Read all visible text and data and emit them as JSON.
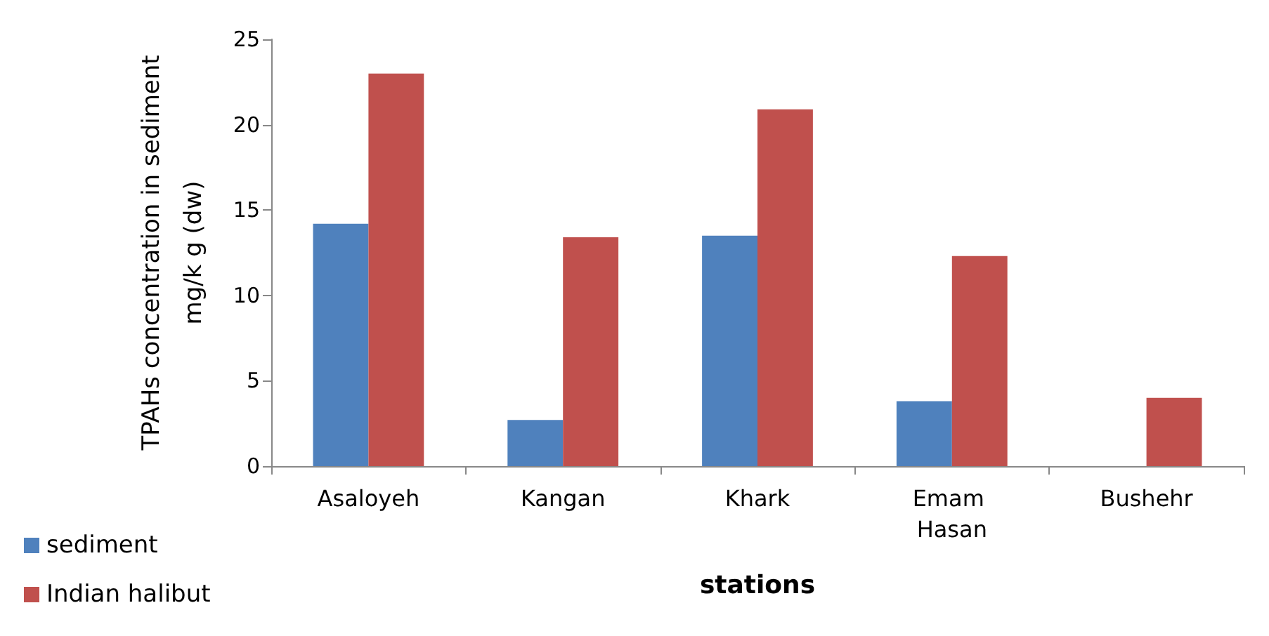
{
  "chart_data": {
    "type": "bar",
    "xlabel": "stations",
    "ylabel": "TPAHs concentration in sediment\nmg/k g (dw)",
    "categories": [
      "Asaloyeh",
      "Kangan",
      "Khark",
      "Emam Hasan",
      "Bushehr"
    ],
    "series": [
      {
        "name": "sediment",
        "color": "#4f81bd",
        "values": [
          14.2,
          2.7,
          13.5,
          3.8,
          null
        ]
      },
      {
        "name": "Indian halibut",
        "color": "#c0504d",
        "values": [
          23.0,
          13.4,
          20.9,
          12.3,
          4.0
        ]
      }
    ],
    "ylim": [
      0,
      25
    ],
    "yticks": [
      0,
      5,
      10,
      15,
      20,
      25
    ],
    "grid": false,
    "legend": "bottom left"
  }
}
